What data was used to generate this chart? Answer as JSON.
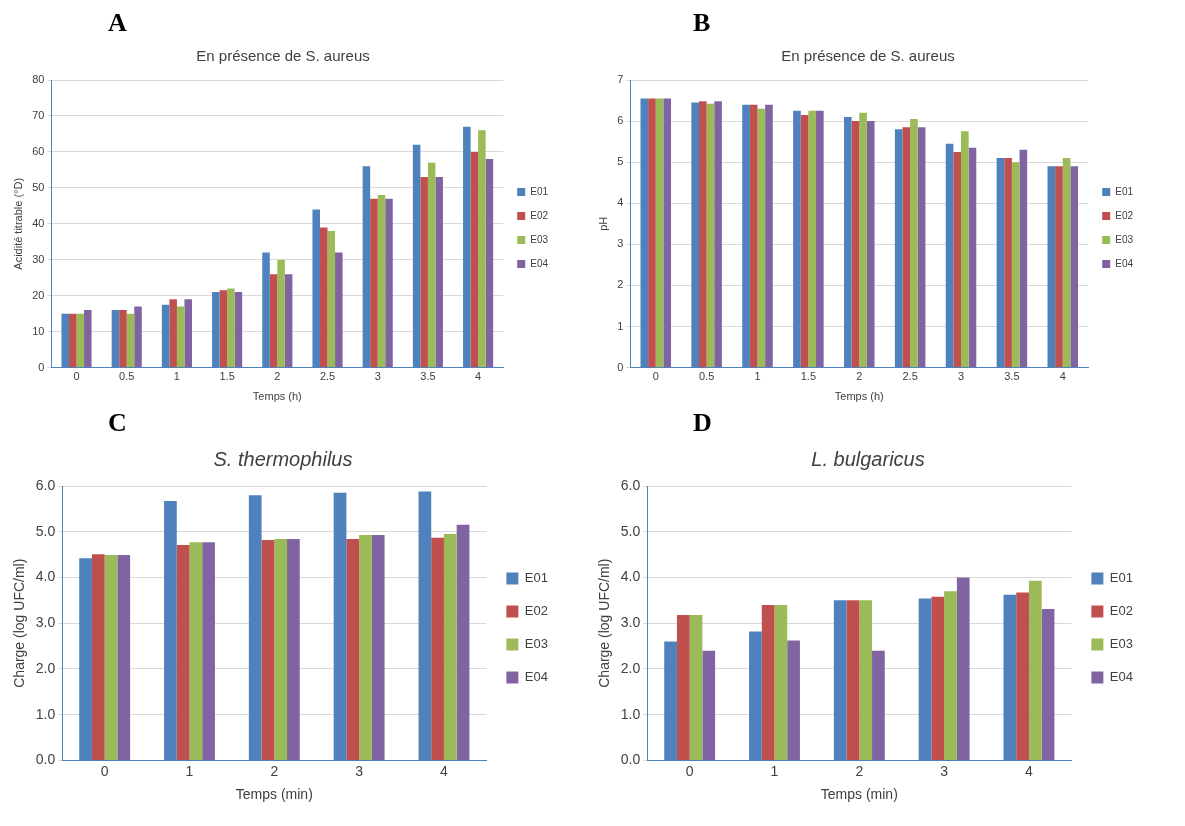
{
  "chart_data": [
    {
      "type": "bar",
      "title": "En présence de S. aureus",
      "annotations": [
        "A"
      ],
      "xlabel": "Temps (h)",
      "ylabel": "Acidité titrable (°D)",
      "categories": [
        "0",
        "0.5",
        "1",
        "1.5",
        "2",
        "2.5",
        "3",
        "3.5",
        "4"
      ],
      "ylim": [
        0,
        80
      ],
      "yticks": [
        0,
        10,
        20,
        30,
        40,
        50,
        60,
        70,
        80
      ],
      "grid": "y",
      "legend": "right",
      "series": [
        {
          "name": "E01",
          "color": "#4f81bd",
          "values": [
            15,
            16,
            17.5,
            21,
            32,
            44,
            56,
            62,
            67
          ]
        },
        {
          "name": "E02",
          "color": "#c0504d",
          "values": [
            15,
            16,
            19,
            21.5,
            26,
            39,
            47,
            53,
            60
          ]
        },
        {
          "name": "E03",
          "color": "#9bbb59",
          "values": [
            15,
            15,
            17,
            22,
            30,
            38,
            48,
            57,
            66
          ]
        },
        {
          "name": "E04",
          "color": "#8064a2",
          "values": [
            16,
            17,
            19,
            21,
            26,
            32,
            47,
            53,
            58
          ]
        }
      ]
    },
    {
      "type": "bar",
      "title": "En présence de S. aureus",
      "annotations": [
        "B"
      ],
      "xlabel": "Temps (h)",
      "ylabel": "pH",
      "categories": [
        "0",
        "0.5",
        "1",
        "1.5",
        "2",
        "2.5",
        "3",
        "3.5",
        "4"
      ],
      "ylim": [
        0,
        7
      ],
      "yticks": [
        0,
        1,
        2,
        3,
        4,
        5,
        6,
        7
      ],
      "grid": "y",
      "legend": "right",
      "series": [
        {
          "name": "E01",
          "color": "#4f81bd",
          "values": [
            6.55,
            6.45,
            6.4,
            6.25,
            6.1,
            5.8,
            5.45,
            5.1,
            4.9
          ]
        },
        {
          "name": "E02",
          "color": "#c0504d",
          "values": [
            6.55,
            6.48,
            6.4,
            6.15,
            6.0,
            5.85,
            5.25,
            5.1,
            4.9
          ]
        },
        {
          "name": "E03",
          "color": "#9bbb59",
          "values": [
            6.55,
            6.42,
            6.3,
            6.25,
            6.2,
            6.05,
            5.75,
            5.0,
            5.1
          ]
        },
        {
          "name": "E04",
          "color": "#8064a2",
          "values": [
            6.55,
            6.48,
            6.4,
            6.25,
            6.0,
            5.85,
            5.35,
            5.3,
            4.9
          ]
        }
      ]
    },
    {
      "type": "bar",
      "title": "S. thermophilus",
      "annotations": [
        "C"
      ],
      "xlabel": "Temps (min)",
      "ylabel": "Charge (log UFC/ml)",
      "categories": [
        "0",
        "1",
        "2",
        "3",
        "4"
      ],
      "ylim": [
        0,
        6
      ],
      "yticks": [
        {
          "value": 0,
          "label": "0.0"
        },
        {
          "value": 1,
          "label": "1.0"
        },
        {
          "value": 2,
          "label": "2.0"
        },
        {
          "value": 3,
          "label": "3.0"
        },
        {
          "value": 4,
          "label": "4.0"
        },
        {
          "value": 5,
          "label": "5.0"
        },
        {
          "value": 6,
          "label": "6.0"
        }
      ],
      "grid": "y",
      "legend": "right",
      "series": [
        {
          "name": "E01",
          "color": "#4f81bd",
          "values": [
            4.42,
            5.67,
            5.8,
            5.85,
            5.88
          ]
        },
        {
          "name": "E02",
          "color": "#c0504d",
          "values": [
            4.51,
            4.71,
            4.82,
            4.84,
            4.87
          ]
        },
        {
          "name": "E03",
          "color": "#9bbb59",
          "values": [
            4.49,
            4.77,
            4.84,
            4.93,
            4.95
          ]
        },
        {
          "name": "E04",
          "color": "#8064a2",
          "values": [
            4.49,
            4.77,
            4.84,
            4.93,
            5.15
          ]
        }
      ]
    },
    {
      "type": "bar",
      "title": "L. bulgaricus",
      "annotations": [
        "D"
      ],
      "xlabel": "Temps (min)",
      "ylabel": "Charge (log UFC/ml)",
      "categories": [
        "0",
        "1",
        "2",
        "3",
        "4"
      ],
      "ylim": [
        0,
        6
      ],
      "yticks": [
        {
          "value": 0,
          "label": "0.0"
        },
        {
          "value": 1,
          "label": "1.0"
        },
        {
          "value": 2,
          "label": "2.0"
        },
        {
          "value": 3,
          "label": "3.0"
        },
        {
          "value": 4,
          "label": "4.0"
        },
        {
          "value": 5,
          "label": "5.0"
        },
        {
          "value": 6,
          "label": "6.0"
        }
      ],
      "grid": "y",
      "legend": "right",
      "series": [
        {
          "name": "E01",
          "color": "#4f81bd",
          "values": [
            2.6,
            2.82,
            3.5,
            3.54,
            3.62
          ]
        },
        {
          "name": "E02",
          "color": "#c0504d",
          "values": [
            3.18,
            3.4,
            3.5,
            3.58,
            3.67
          ]
        },
        {
          "name": "E03",
          "color": "#9bbb59",
          "values": [
            3.18,
            3.4,
            3.5,
            3.7,
            3.93
          ]
        },
        {
          "name": "E04",
          "color": "#8064a2",
          "values": [
            2.4,
            2.62,
            2.4,
            4.0,
            3.31
          ]
        }
      ]
    }
  ]
}
